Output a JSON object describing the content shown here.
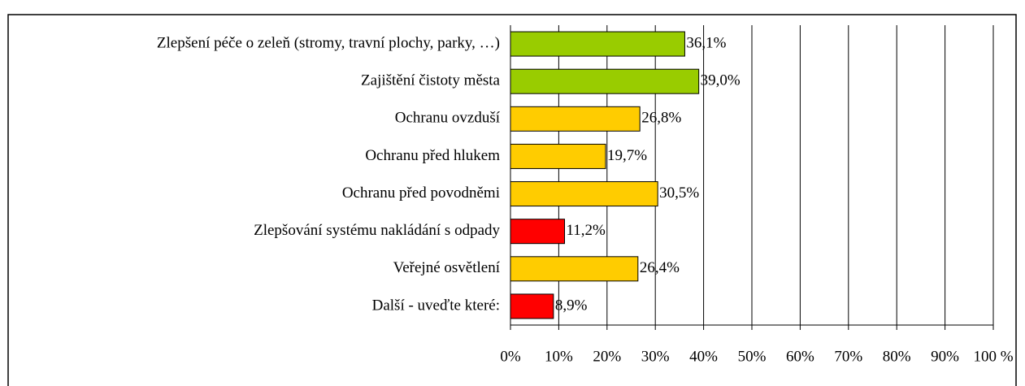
{
  "chart_data": {
    "type": "bar",
    "orientation": "horizontal",
    "categories": [
      "Zlepšení péče o zeleň (stromy, travní plochy, parky, …)",
      "Zajištění čistoty města",
      "Ochranu ovzduší",
      "Ochranu před hlukem",
      "Ochranu před povodněmi",
      "Zlepšování systému nakládání s odpady",
      "Veřejné osvětlení",
      "Další - uveďte které:"
    ],
    "values": [
      36.1,
      39.0,
      26.8,
      19.7,
      30.5,
      11.2,
      26.4,
      8.9
    ],
    "value_labels": [
      "36,1%",
      "39,0%",
      "26,8%",
      "19,7%",
      "30,5%",
      "11,2%",
      "26,4%",
      "8,9%"
    ],
    "colors": [
      "#99cc00",
      "#99cc00",
      "#ffcc00",
      "#ffcc00",
      "#ffcc00",
      "#ff0000",
      "#ffcc00",
      "#ff0000"
    ],
    "xlim": [
      0,
      100
    ],
    "xticks": [
      {
        "value": 0,
        "label": "0%"
      },
      {
        "value": 10,
        "label": "10%"
      },
      {
        "value": 20,
        "label": "20%"
      },
      {
        "value": 30,
        "label": "30%"
      },
      {
        "value": 40,
        "label": "40%"
      },
      {
        "value": 50,
        "label": "50%"
      },
      {
        "value": 60,
        "label": "60%"
      },
      {
        "value": 70,
        "label": "70%"
      },
      {
        "value": 80,
        "label": "80%"
      },
      {
        "value": 90,
        "label": "90%"
      },
      {
        "value": 100,
        "label": "100 %"
      }
    ],
    "grid": true
  }
}
